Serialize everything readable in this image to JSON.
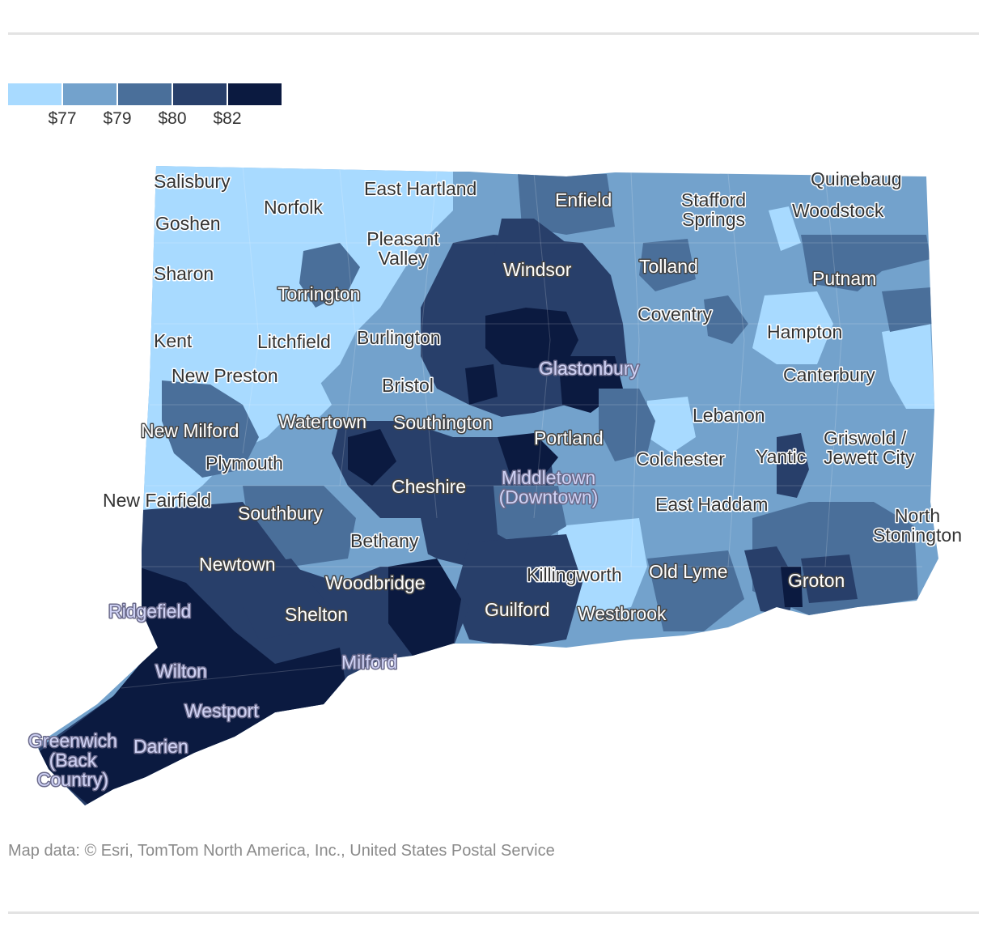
{
  "legend": {
    "colors": [
      "#a8daff",
      "#73a2cc",
      "#4a6f9a",
      "#283f6a",
      "#0b1a40"
    ],
    "labels": [
      "$77",
      "$79",
      "$80",
      "$82"
    ]
  },
  "towns": [
    {
      "name": "Salisbury",
      "style": "dark"
    },
    {
      "name": "Norfolk",
      "style": "dark"
    },
    {
      "name": "East Hartland",
      "style": "dark"
    },
    {
      "name": "Enfield",
      "style": "light"
    },
    {
      "name": "Stafford Springs",
      "style": "dark"
    },
    {
      "name": "Quinebaug",
      "style": "dark"
    },
    {
      "name": "Woodstock",
      "style": "dark"
    },
    {
      "name": "Goshen",
      "style": "dark"
    },
    {
      "name": "Pleasant Valley",
      "style": "dark"
    },
    {
      "name": "Windsor",
      "style": "light"
    },
    {
      "name": "Tolland",
      "style": "light"
    },
    {
      "name": "Putnam",
      "style": "light"
    },
    {
      "name": "Sharon",
      "style": "dark"
    },
    {
      "name": "Torrington",
      "style": "light"
    },
    {
      "name": "Coventry",
      "style": "dark"
    },
    {
      "name": "Hampton",
      "style": "dark"
    },
    {
      "name": "Kent",
      "style": "dark"
    },
    {
      "name": "Litchfield",
      "style": "dark"
    },
    {
      "name": "Burlington",
      "style": "dark"
    },
    {
      "name": "Glastonbury",
      "style": "lav"
    },
    {
      "name": "New Preston",
      "style": "dark"
    },
    {
      "name": "Bristol",
      "style": "dark"
    },
    {
      "name": "Canterbury",
      "style": "dark"
    },
    {
      "name": "New Milford",
      "style": "light"
    },
    {
      "name": "Watertown",
      "style": "light"
    },
    {
      "name": "Southington",
      "style": "light"
    },
    {
      "name": "Lebanon",
      "style": "dark"
    },
    {
      "name": "Portland",
      "style": "light"
    },
    {
      "name": "Griswold / Jewett City",
      "style": "dark"
    },
    {
      "name": "Plymouth",
      "style": "dark"
    },
    {
      "name": "Colchester",
      "style": "dark"
    },
    {
      "name": "Yantic",
      "style": "dark"
    },
    {
      "name": "Middletown (Downtown)",
      "style": "lav"
    },
    {
      "name": "Cheshire",
      "style": "light"
    },
    {
      "name": "New Fairfield",
      "style": "dark"
    },
    {
      "name": "Southbury",
      "style": "light"
    },
    {
      "name": "East Haddam",
      "style": "dark"
    },
    {
      "name": "North Stonington",
      "style": "dark"
    },
    {
      "name": "Bethany",
      "style": "dark"
    },
    {
      "name": "Newtown",
      "style": "light"
    },
    {
      "name": "Woodbridge",
      "style": "light"
    },
    {
      "name": "Killingworth",
      "style": "dark"
    },
    {
      "name": "Old Lyme",
      "style": "light"
    },
    {
      "name": "Groton",
      "style": "light"
    },
    {
      "name": "Ridgefield",
      "style": "lav"
    },
    {
      "name": "Guilford",
      "style": "light"
    },
    {
      "name": "Shelton",
      "style": "light"
    },
    {
      "name": "Westbrook",
      "style": "light"
    },
    {
      "name": "Milford",
      "style": "lav"
    },
    {
      "name": "Wilton",
      "style": "lav"
    },
    {
      "name": "Westport",
      "style": "lav"
    },
    {
      "name": "Darien",
      "style": "lav"
    },
    {
      "name": "Greenwich (Back Country)",
      "style": "lav"
    }
  ],
  "source": "Map data: © Esri, TomTom North America, Inc., United States Postal Service"
}
